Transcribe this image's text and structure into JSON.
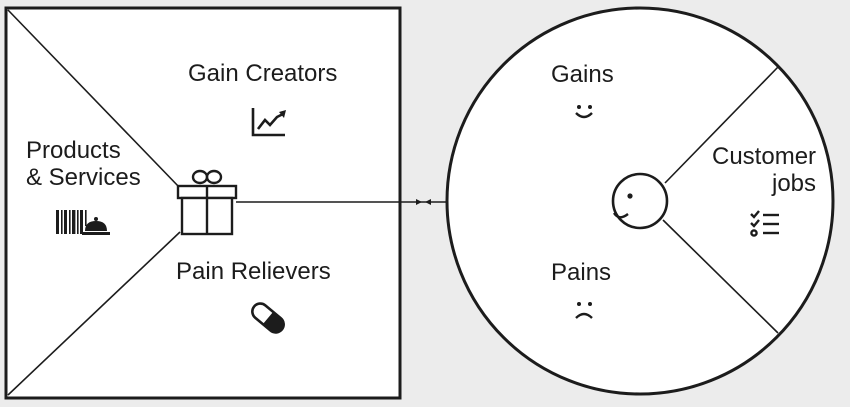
{
  "value_map": {
    "gain_creators": {
      "label": "Gain Creators",
      "icon": "rising-chart-icon"
    },
    "products_services": {
      "line1": "Products",
      "line2": "& Services",
      "icon": "barcode-service-bell-icon"
    },
    "pain_relievers": {
      "label": "Pain Relievers",
      "icon": "pill-capsule-icon"
    },
    "center_icon": "gift-box-icon"
  },
  "customer_profile": {
    "gains": {
      "label": "Gains",
      "icon": "smiley-face-icon"
    },
    "customer_jobs": {
      "line1": "Customer",
      "line2": "jobs",
      "icon": "checklist-icon"
    },
    "pains": {
      "label": "Pains",
      "icon": "sad-face-icon"
    },
    "center_icon": "customer-face-icon"
  },
  "colors": {
    "background": "#ececec",
    "panel": "#ffffff",
    "stroke": "#1c1c1c"
  }
}
